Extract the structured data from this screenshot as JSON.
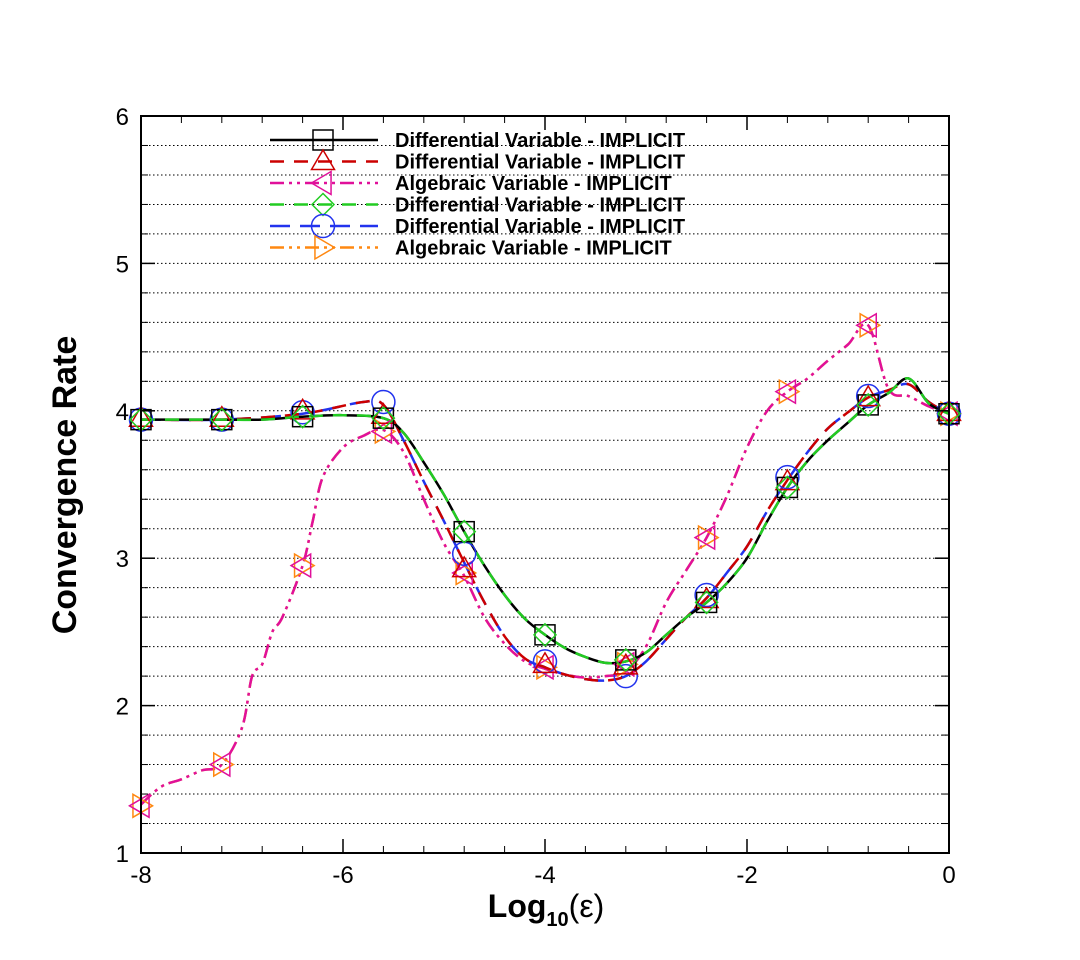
{
  "chart_data": {
    "type": "line",
    "title": "",
    "xlabel": {
      "base": "Log",
      "sub": "10",
      "arg": "(ε)"
    },
    "ylabel": "Convergence Rate",
    "xlim": [
      -8,
      0
    ],
    "ylim": [
      1,
      6
    ],
    "x_ticks": [
      -8,
      -6,
      -4,
      -2,
      0
    ],
    "x_tick_labels": [
      "-8",
      "-6",
      "-4",
      "-2",
      "0"
    ],
    "y_ticks": [
      1,
      2,
      3,
      4,
      5,
      6
    ],
    "y_tick_labels": [
      "1",
      "2",
      "3",
      "4",
      "5",
      "6"
    ],
    "grid": "horizontal dotted, every 0.2",
    "legend_position": "top-center",
    "series": [
      {
        "name": "Differential Variable - IMPLICIT",
        "color": "#000000",
        "dash": "solid",
        "marker": "square",
        "x": [
          -8,
          -7.2,
          -6.4,
          -5.6,
          -4.8,
          -4.0,
          -3.2,
          -2.4,
          -1.6,
          -0.8,
          0
        ],
        "y": [
          3.94,
          3.94,
          3.96,
          3.95,
          3.18,
          2.48,
          2.31,
          2.7,
          3.48,
          4.04,
          3.98
        ],
        "curve_x": [
          -8,
          -7.6,
          -7.2,
          -6.8,
          -6.4,
          -6.0,
          -5.6,
          -5.4,
          -5.2,
          -5.0,
          -4.8,
          -4.6,
          -4.4,
          -4.2,
          -4.0,
          -3.8,
          -3.6,
          -3.4,
          -3.2,
          -3.0,
          -2.8,
          -2.6,
          -2.4,
          -2.2,
          -2.0,
          -1.8,
          -1.6,
          -1.4,
          -1.2,
          -1.0,
          -0.8,
          -0.6,
          -0.4,
          -0.2,
          0
        ],
        "curve_y": [
          3.94,
          3.94,
          3.94,
          3.94,
          3.96,
          3.97,
          3.95,
          3.85,
          3.65,
          3.43,
          3.18,
          2.95,
          2.75,
          2.59,
          2.48,
          2.39,
          2.33,
          2.29,
          2.3,
          2.36,
          2.48,
          2.6,
          2.7,
          2.83,
          3.0,
          3.25,
          3.48,
          3.66,
          3.8,
          3.92,
          4.04,
          4.12,
          4.22,
          4.05,
          3.98
        ]
      },
      {
        "name": "Differential Variable - IMPLICIT",
        "color": "#cc0000",
        "dash": "dashed",
        "marker": "triangle-up",
        "x": [
          -8,
          -7.2,
          -6.4,
          -5.6,
          -4.8,
          -4.0,
          -3.2,
          -2.4,
          -1.6,
          -0.8,
          0
        ],
        "y": [
          3.95,
          3.95,
          4.0,
          3.97,
          2.93,
          2.28,
          2.27,
          2.72,
          3.52,
          4.09,
          3.99
        ],
        "curve_x": [
          -8,
          -7.2,
          -6.4,
          -5.8,
          -5.6,
          -5.4,
          -5.2,
          -5.0,
          -4.8,
          -4.6,
          -4.4,
          -4.2,
          -4.0,
          -3.8,
          -3.6,
          -3.4,
          -3.2,
          -3.0,
          -2.8,
          -2.6,
          -2.4,
          -2.2,
          -2.0,
          -1.8,
          -1.6,
          -1.4,
          -1.2,
          -1.0,
          -0.8,
          -0.6,
          -0.4,
          -0.2,
          0
        ],
        "curve_y": [
          3.94,
          3.94,
          3.98,
          4.06,
          4.04,
          3.8,
          3.52,
          3.25,
          2.97,
          2.7,
          2.47,
          2.32,
          2.26,
          2.21,
          2.18,
          2.17,
          2.2,
          2.3,
          2.45,
          2.6,
          2.73,
          2.9,
          3.08,
          3.32,
          3.53,
          3.72,
          3.88,
          3.99,
          4.09,
          4.14,
          4.18,
          4.06,
          3.98
        ]
      },
      {
        "name": "Algebraic Variable - IMPLICIT",
        "color": "#e0109a",
        "dash": "dashdotdot",
        "marker": "triangle-left",
        "x": [
          -8,
          -7.2,
          -6.4,
          -5.6,
          -4.8,
          -4.0,
          -3.2,
          -2.4,
          -1.6,
          -0.8,
          0
        ],
        "y": [
          1.32,
          1.6,
          2.95,
          3.86,
          2.9,
          2.26,
          2.28,
          3.14,
          4.13,
          4.58,
          3.98
        ],
        "curve_x": [
          -8,
          -7.8,
          -7.6,
          -7.4,
          -7.2,
          -7.0,
          -6.9,
          -6.8,
          -6.7,
          -6.6,
          -6.4,
          -6.3,
          -6.2,
          -6.0,
          -5.8,
          -5.6,
          -5.4,
          -5.2,
          -5.0,
          -4.8,
          -4.6,
          -4.4,
          -4.2,
          -4.0,
          -3.8,
          -3.6,
          -3.4,
          -3.2,
          -3.0,
          -2.8,
          -2.6,
          -2.4,
          -2.2,
          -2.0,
          -1.8,
          -1.6,
          -1.4,
          -1.2,
          -1.0,
          -0.8,
          -0.6,
          -0.4,
          -0.2,
          0
        ],
        "curve_y": [
          1.33,
          1.45,
          1.5,
          1.56,
          1.6,
          1.85,
          2.2,
          2.28,
          2.5,
          2.6,
          2.95,
          3.25,
          3.55,
          3.75,
          3.83,
          3.87,
          3.72,
          3.4,
          3.1,
          2.88,
          2.6,
          2.42,
          2.3,
          2.25,
          2.21,
          2.19,
          2.2,
          2.23,
          2.4,
          2.7,
          2.92,
          3.14,
          3.42,
          3.75,
          4.0,
          4.13,
          4.22,
          4.34,
          4.45,
          4.58,
          4.15,
          4.1,
          4.03,
          3.98
        ]
      },
      {
        "name": "Differential Variable - IMPLICIT",
        "color": "#22cc22",
        "dash": "dashed",
        "marker": "diamond",
        "x": [
          -8,
          -7.2,
          -6.4,
          -5.6,
          -4.8,
          -4.0,
          -3.2,
          -2.4,
          -1.6,
          -0.8,
          0
        ],
        "y": [
          3.94,
          3.94,
          3.96,
          3.95,
          3.18,
          2.48,
          2.31,
          2.7,
          3.48,
          4.04,
          3.98
        ],
        "curve_x": [
          -8,
          -7.6,
          -7.2,
          -6.8,
          -6.4,
          -6.0,
          -5.6,
          -5.4,
          -5.2,
          -5.0,
          -4.8,
          -4.6,
          -4.4,
          -4.2,
          -4.0,
          -3.8,
          -3.6,
          -3.4,
          -3.2,
          -3.0,
          -2.8,
          -2.6,
          -2.4,
          -2.2,
          -2.0,
          -1.8,
          -1.6,
          -1.4,
          -1.2,
          -1.0,
          -0.8,
          -0.6,
          -0.4,
          -0.2,
          0
        ],
        "curve_y": [
          3.94,
          3.94,
          3.94,
          3.94,
          3.96,
          3.97,
          3.95,
          3.85,
          3.65,
          3.43,
          3.18,
          2.95,
          2.75,
          2.59,
          2.48,
          2.39,
          2.33,
          2.29,
          2.3,
          2.36,
          2.48,
          2.6,
          2.7,
          2.83,
          3.0,
          3.25,
          3.48,
          3.66,
          3.8,
          3.92,
          4.04,
          4.12,
          4.22,
          4.05,
          3.98
        ]
      },
      {
        "name": "Differential Variable - IMPLICIT",
        "color": "#2233ee",
        "dash": "longdash",
        "marker": "circle",
        "x": [
          -8,
          -7.2,
          -6.4,
          -5.6,
          -4.8,
          -4.0,
          -3.2,
          -2.4,
          -1.6,
          -0.8,
          0
        ],
        "y": [
          3.94,
          3.94,
          3.99,
          4.06,
          3.03,
          2.3,
          2.2,
          2.75,
          3.55,
          4.1,
          3.98
        ],
        "curve_x": [
          -8,
          -7.2,
          -6.4,
          -5.8,
          -5.6,
          -5.4,
          -5.2,
          -5.0,
          -4.8,
          -4.6,
          -4.4,
          -4.2,
          -4.0,
          -3.8,
          -3.6,
          -3.4,
          -3.2,
          -3.0,
          -2.8,
          -2.6,
          -2.4,
          -2.2,
          -2.0,
          -1.8,
          -1.6,
          -1.4,
          -1.2,
          -1.0,
          -0.8,
          -0.6,
          -0.4,
          -0.2,
          0
        ],
        "curve_y": [
          3.94,
          3.94,
          3.98,
          4.06,
          4.04,
          3.8,
          3.52,
          3.25,
          2.97,
          2.7,
          2.47,
          2.32,
          2.26,
          2.21,
          2.18,
          2.17,
          2.2,
          2.3,
          2.45,
          2.6,
          2.73,
          2.9,
          3.08,
          3.32,
          3.53,
          3.72,
          3.88,
          3.99,
          4.09,
          4.14,
          4.18,
          4.06,
          3.98
        ]
      },
      {
        "name": "Algebraic Variable - IMPLICIT",
        "color": "#ff8811",
        "dash": "dashdotdot",
        "marker": "triangle-right",
        "x": [
          -8,
          -7.2,
          -6.4,
          -5.6,
          -4.8,
          -4.0,
          -3.2,
          -2.4,
          -1.6,
          -0.8,
          0
        ],
        "y": [
          1.32,
          1.6,
          2.95,
          3.86,
          2.9,
          2.26,
          2.28,
          3.14,
          4.13,
          4.58,
          3.98
        ],
        "curve_x": [
          -8,
          -7.8,
          -7.6,
          -7.4,
          -7.2,
          -7.0,
          -6.9,
          -6.8,
          -6.7,
          -6.6,
          -6.4,
          -6.3,
          -6.2,
          -6.0,
          -5.8,
          -5.6,
          -5.4,
          -5.2,
          -5.0,
          -4.8,
          -4.6,
          -4.4,
          -4.2,
          -4.0,
          -3.8,
          -3.6,
          -3.4,
          -3.2,
          -3.0,
          -2.8,
          -2.6,
          -2.4,
          -2.2,
          -2.0,
          -1.8,
          -1.6,
          -1.4,
          -1.2,
          -1.0,
          -0.8,
          -0.6,
          -0.4,
          -0.2,
          0
        ],
        "curve_y": [
          1.33,
          1.45,
          1.5,
          1.56,
          1.6,
          1.85,
          2.2,
          2.28,
          2.5,
          2.6,
          2.95,
          3.25,
          3.55,
          3.75,
          3.83,
          3.87,
          3.72,
          3.4,
          3.1,
          2.88,
          2.6,
          2.42,
          2.3,
          2.25,
          2.21,
          2.19,
          2.2,
          2.23,
          2.4,
          2.7,
          2.92,
          3.14,
          3.42,
          3.75,
          4.0,
          4.13,
          4.22,
          4.34,
          4.45,
          4.58,
          4.15,
          4.1,
          4.03,
          3.98
        ]
      }
    ]
  }
}
